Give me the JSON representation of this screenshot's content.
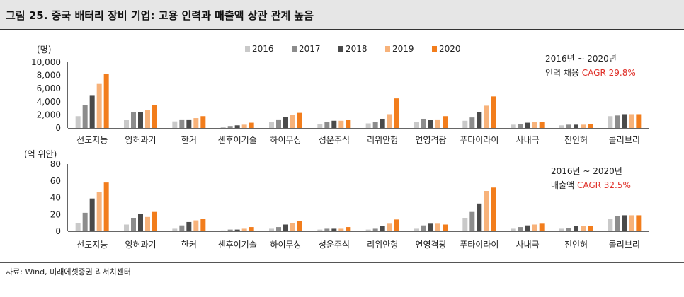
{
  "title": "그림 25. 중국 배터리 장비 기업: 고용 인력과 매출액 상관 관계 높음",
  "source": "자료: Wind, 미래에셋증권 리서치센터",
  "colors": {
    "2016": "#c9c9c9",
    "2017": "#8c8c8c",
    "2018": "#4a4a4a",
    "2019": "#f7b27a",
    "2020": "#f27d1c"
  },
  "chart_data": [
    {
      "type": "bar",
      "ylabel": "(명)",
      "ylim": [
        0,
        10000
      ],
      "yticks": [
        "10,000",
        "8,000",
        "6,000",
        "4,000",
        "2,000",
        "0"
      ],
      "yticks_values": [
        10000,
        8000,
        6000,
        4000,
        2000,
        0
      ],
      "legend": [
        "2016",
        "2017",
        "2018",
        "2019",
        "2020"
      ],
      "note_line1": "2016년 ~ 2020년",
      "note_line2_prefix": "인력 채용 ",
      "note_line2_cagr": "CAGR 29.8%",
      "categories": [
        "선도지능",
        "잉허과기",
        "한커",
        "센후이기술",
        "하이무싱",
        "성운주식",
        "리위안헝",
        "연영격광",
        "푸타이라이",
        "사내극",
        "진인허",
        "콜리브리"
      ],
      "series": [
        {
          "name": "2016",
          "values": [
            1800,
            1200,
            1000,
            200,
            900,
            600,
            700,
            900,
            1100,
            500,
            400,
            1800
          ]
        },
        {
          "name": "2017",
          "values": [
            3500,
            2400,
            1300,
            300,
            1300,
            900,
            900,
            1400,
            1600,
            600,
            500,
            1900
          ]
        },
        {
          "name": "2018",
          "values": [
            4900,
            2400,
            1300,
            400,
            1700,
            1100,
            1400,
            1200,
            2400,
            800,
            500,
            2100
          ]
        },
        {
          "name": "2019",
          "values": [
            6700,
            2700,
            1500,
            500,
            2000,
            1100,
            2100,
            1300,
            3400,
            900,
            500,
            2100
          ]
        },
        {
          "name": "2020",
          "values": [
            8200,
            3500,
            1800,
            800,
            2300,
            1200,
            4500,
            1800,
            4800,
            900,
            600,
            2100
          ]
        }
      ]
    },
    {
      "type": "bar",
      "ylabel": "(억 위안)",
      "ylim": [
        0,
        80
      ],
      "yticks": [
        "80",
        "60",
        "40",
        "20",
        "0"
      ],
      "yticks_values": [
        80,
        60,
        40,
        20,
        0
      ],
      "note_line1": "2016년 ~ 2020년",
      "note_line2_prefix": "매출액 ",
      "note_line2_cagr": "CAGR 32.5%",
      "categories": [
        "선도지능",
        "잉허과기",
        "한커",
        "센후이기술",
        "하이무싱",
        "성운주식",
        "리위안헝",
        "연영격광",
        "푸타이라이",
        "사내극",
        "진인허",
        "콜리브리"
      ],
      "series": [
        {
          "name": "2016",
          "values": [
            10,
            8,
            3,
            1,
            3,
            2,
            2,
            3,
            16,
            3,
            3,
            15
          ]
        },
        {
          "name": "2017",
          "values": [
            22,
            16,
            7,
            2,
            5,
            3,
            3,
            7,
            23,
            5,
            4,
            18
          ]
        },
        {
          "name": "2018",
          "values": [
            39,
            21,
            11,
            2,
            8,
            3,
            6,
            9,
            33,
            7,
            6,
            19
          ]
        },
        {
          "name": "2019",
          "values": [
            47,
            17,
            13,
            3,
            10,
            3,
            9,
            9,
            48,
            8,
            6,
            19
          ]
        },
        {
          "name": "2020",
          "values": [
            58,
            23,
            15,
            5,
            12,
            5,
            14,
            8,
            52,
            9,
            6,
            19
          ]
        }
      ]
    }
  ]
}
